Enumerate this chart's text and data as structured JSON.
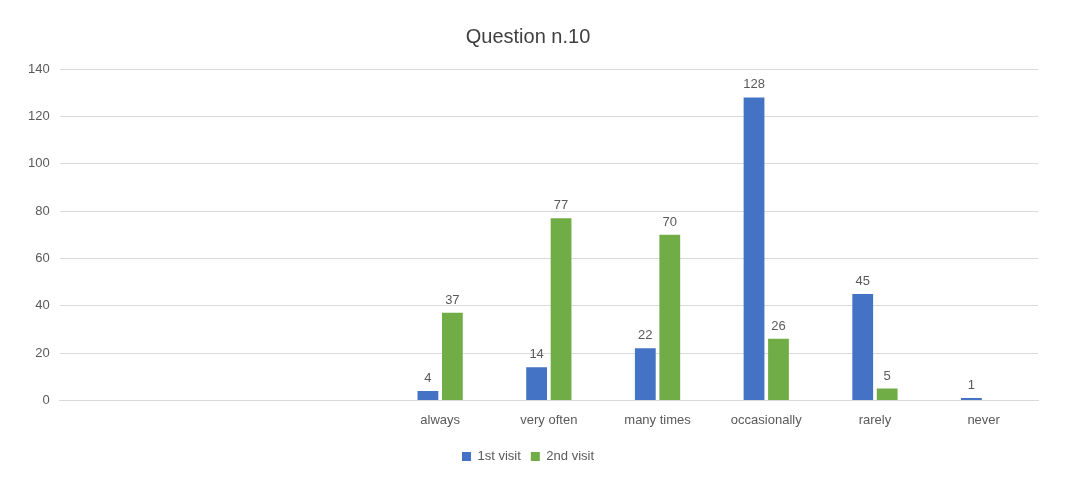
{
  "chart_data": {
    "type": "bar",
    "title": "Question n.10",
    "categories": [
      null,
      null,
      null,
      "always",
      "very often",
      "many times",
      "occasionally",
      "rarely",
      "never"
    ],
    "series": [
      {
        "name": "1st visit",
        "color": "#4472c4",
        "values": [
          null,
          null,
          null,
          4,
          14,
          22,
          128,
          45,
          1
        ]
      },
      {
        "name": "2nd visit",
        "color": "#70ad47",
        "values": [
          null,
          null,
          null,
          37,
          77,
          70,
          26,
          5,
          null
        ]
      }
    ],
    "ylim": [
      0,
      140
    ],
    "yticks": [
      0,
      20,
      40,
      60,
      80,
      100,
      120,
      140
    ],
    "grid": "y",
    "legend": "bottom",
    "data_labels": true
  }
}
